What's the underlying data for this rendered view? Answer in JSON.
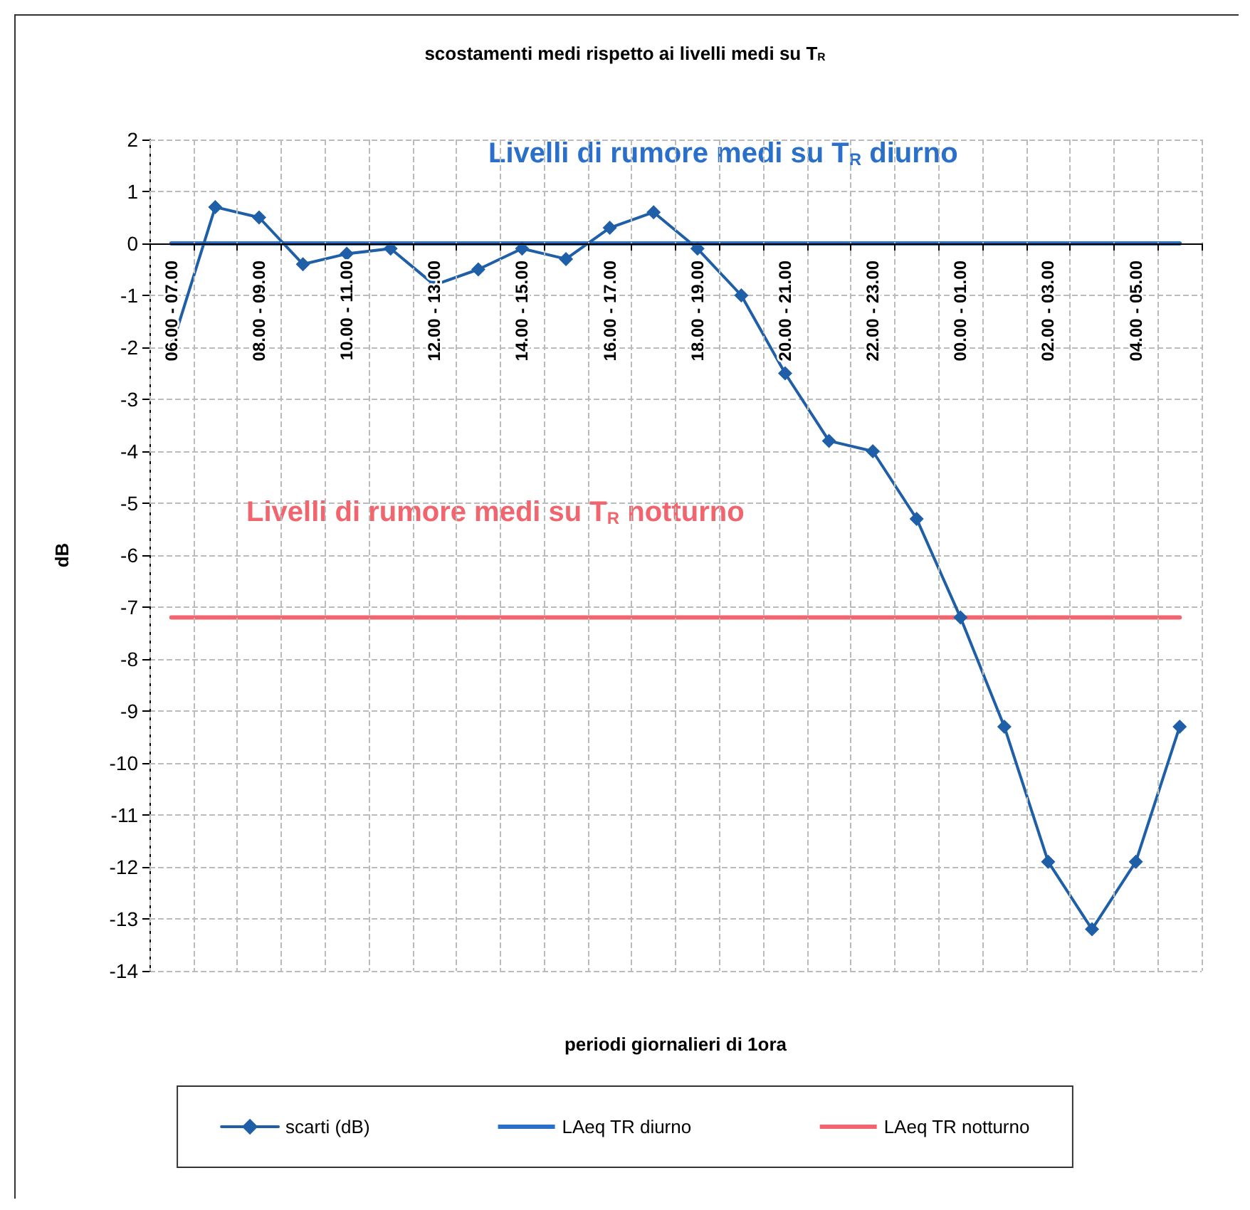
{
  "chart_data": {
    "type": "line",
    "title": "scostamenti medi rispetto ai livelli medi su T$_{R}$",
    "xlabel": "periodi giornalieri di 1ora",
    "ylabel": "dB",
    "categories": [
      "06.00 - 07.00",
      null,
      "08.00 - 09.00",
      null,
      "10.00 - 11.00",
      null,
      "12.00 - 13.00",
      null,
      "14.00 - 15.00",
      null,
      "16.00 - 17.00",
      null,
      "18.00 - 19.00",
      null,
      "20.00 - 21.00",
      null,
      "22.00 - 23.00",
      null,
      "00.00 - 01.00",
      null,
      "02.00 - 03.00",
      null,
      "04.00 - 05.00",
      null
    ],
    "series": [
      {
        "name": "scarti (dB)",
        "color": "#1f5fa8",
        "marker": "diamond",
        "values": [
          -2.0,
          0.7,
          0.5,
          -0.4,
          -0.2,
          -0.1,
          -0.8,
          -0.5,
          -0.1,
          -0.3,
          0.3,
          0.6,
          -0.1,
          -1.0,
          -2.5,
          -3.8,
          -4.0,
          -5.3,
          -7.2,
          -9.3,
          -11.9,
          -13.2,
          -11.9,
          -9.3
        ]
      },
      {
        "name": "LAeq TR diurno",
        "color": "#2a6fc9",
        "marker": "none",
        "values": [
          0,
          0,
          0,
          0,
          0,
          0,
          0,
          0,
          0,
          0,
          0,
          0,
          0,
          0,
          0,
          0,
          0,
          0,
          0,
          0,
          0,
          0,
          0,
          0
        ]
      },
      {
        "name": "LAeq TR notturno",
        "color": "#f0656e",
        "marker": "none",
        "values": [
          -7.2,
          -7.2,
          -7.2,
          -7.2,
          -7.2,
          -7.2,
          -7.2,
          -7.2,
          -7.2,
          -7.2,
          -7.2,
          -7.2,
          -7.2,
          -7.2,
          -7.2,
          -7.2,
          -7.2,
          -7.2,
          -7.2,
          -7.2,
          -7.2,
          -7.2,
          -7.2,
          -7.2
        ]
      }
    ],
    "annotations": [
      "Livelli di rumore medi su T$_{R}$ diurno",
      "Livelli di rumore medi su T$_{R}$ notturno"
    ],
    "ylim": [
      -14,
      2
    ],
    "yticks": [
      -14,
      -13,
      -12,
      -11,
      -10,
      -9,
      -8,
      -7,
      -6,
      -5,
      -4,
      -3,
      -2,
      -1,
      0,
      1,
      2
    ],
    "grid": true,
    "legend": "bottom",
    "line_style": "solid"
  }
}
